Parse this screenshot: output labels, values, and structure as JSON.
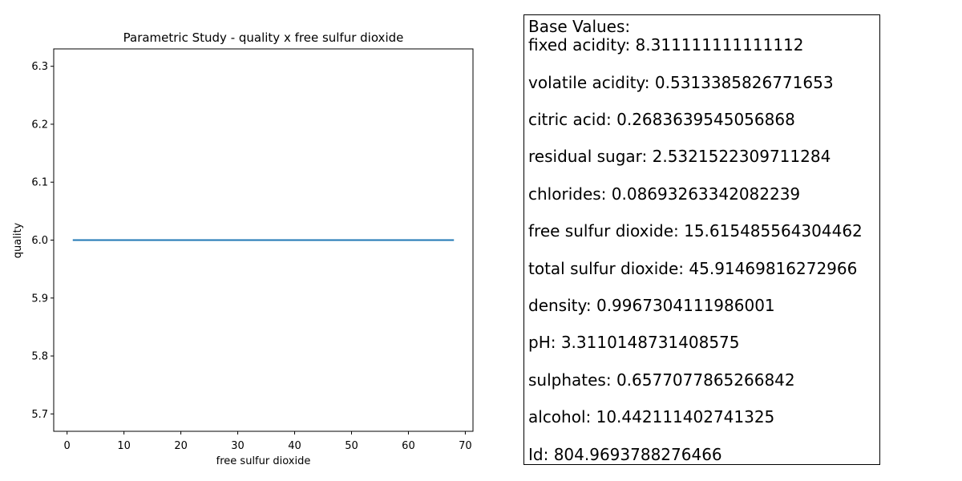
{
  "chart_data": {
    "type": "line",
    "title": "Parametric Study - quality x free sulfur dioxide",
    "xlabel": "free sulfur dioxide",
    "ylabel": "quality",
    "xlim": [
      -2.35,
      71.35
    ],
    "ylim": [
      5.67,
      6.33
    ],
    "x_ticks": [
      0,
      10,
      20,
      30,
      40,
      50,
      60,
      70
    ],
    "y_ticks": [
      5.7,
      5.8,
      5.9,
      6.0,
      6.1,
      6.2,
      6.3
    ],
    "x_tick_labels": [
      "0",
      "10",
      "20",
      "30",
      "40",
      "50",
      "60",
      "70"
    ],
    "y_tick_labels": [
      "5.7",
      "5.8",
      "5.9",
      "6.0",
      "6.1",
      "6.2",
      "6.3"
    ],
    "grid": false,
    "series": [
      {
        "x": [
          1,
          68
        ],
        "y": [
          6,
          6
        ],
        "color": "#1f77b4"
      }
    ]
  },
  "base_values": {
    "heading": "Base Values:",
    "lines": [
      "fixed acidity: 8.311111111111112",
      "volatile acidity: 0.5313385826771653",
      "citric acid: 0.2683639545056868",
      "residual sugar: 2.5321522309711284",
      "chlorides: 0.08693263342082239",
      "free sulfur dioxide: 15.615485564304462",
      "total sulfur dioxide: 45.91469816272966",
      "density: 0.9967304111986001",
      "pH: 3.3110148731408575",
      "sulphates: 0.6577077865266842",
      "alcohol: 10.442111402741325",
      "Id: 804.9693788276466"
    ]
  }
}
